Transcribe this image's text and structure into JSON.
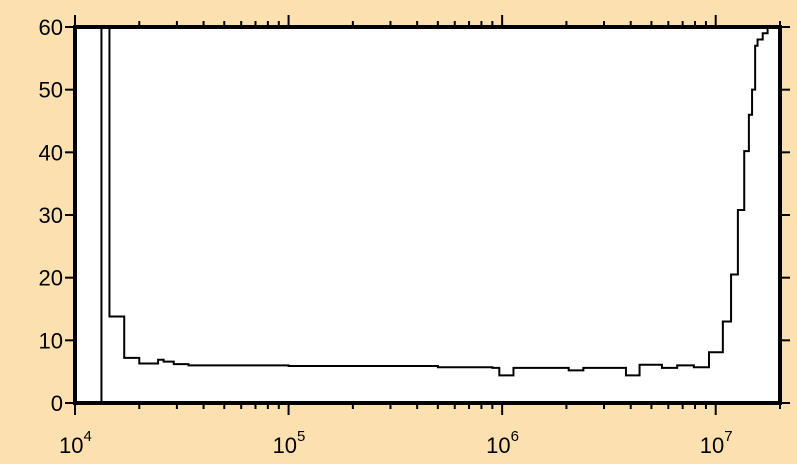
{
  "colors": {
    "background": "#fde0b0",
    "plot_background": "#ffffff",
    "line": "#000000"
  },
  "chart_data": {
    "type": "line",
    "title": "",
    "xlabel": "",
    "ylabel": "",
    "xscale": "log",
    "xlim": [
      10000,
      20000000
    ],
    "ylim": [
      0,
      60
    ],
    "grid": false,
    "x_ticks": [
      {
        "base": "10",
        "exp": "4",
        "value": 10000
      },
      {
        "base": "10",
        "exp": "5",
        "value": 100000
      },
      {
        "base": "10",
        "exp": "6",
        "value": 1000000
      },
      {
        "base": "10",
        "exp": "7",
        "value": 10000000
      }
    ],
    "y_ticks": [
      {
        "label": "0",
        "value": 0
      },
      {
        "label": "10",
        "value": 10
      },
      {
        "label": "20",
        "value": 20
      },
      {
        "label": "30",
        "value": 30
      },
      {
        "label": "40",
        "value": 40
      },
      {
        "label": "50",
        "value": 50
      },
      {
        "label": "60",
        "value": 60
      }
    ],
    "vertical_line_x": 13300,
    "series": [
      {
        "step": true,
        "points": [
          [
            14100,
            60
          ],
          [
            14500,
            13.8
          ],
          [
            17000,
            7.2
          ],
          [
            20000,
            6.3
          ],
          [
            24500,
            6.9
          ],
          [
            26000,
            6.6
          ],
          [
            29000,
            6.2
          ],
          [
            34000,
            6.0
          ],
          [
            100000,
            5.9
          ],
          [
            500000,
            5.7
          ],
          [
            900000,
            5.6
          ],
          [
            970000,
            4.4
          ],
          [
            1130000,
            5.6
          ],
          [
            2050000,
            5.2
          ],
          [
            2400000,
            5.6
          ],
          [
            3800000,
            4.4
          ],
          [
            4400000,
            6.1
          ],
          [
            5600000,
            5.6
          ],
          [
            6600000,
            6.0
          ],
          [
            7900000,
            5.7
          ],
          [
            9300000,
            8.1
          ],
          [
            10800000,
            13.0
          ],
          [
            11800000,
            20.5
          ],
          [
            12700000,
            30.8
          ],
          [
            13600000,
            40.2
          ],
          [
            14300000,
            46.0
          ],
          [
            14800000,
            50.0
          ],
          [
            15300000,
            57.0
          ],
          [
            15700000,
            58.0
          ],
          [
            16600000,
            59.0
          ],
          [
            17500000,
            60
          ]
        ]
      }
    ]
  }
}
